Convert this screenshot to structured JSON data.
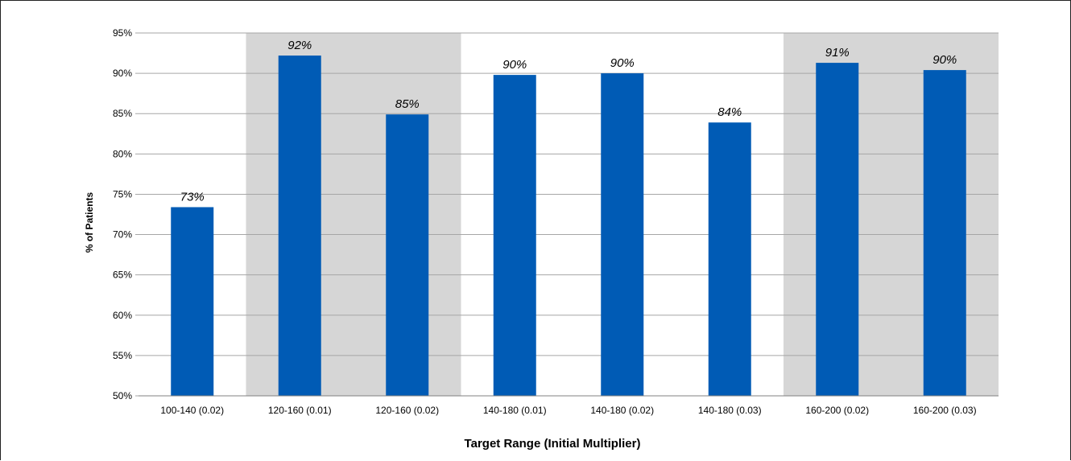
{
  "chart_data": {
    "type": "bar",
    "title": "",
    "xlabel": "Target Range (Initial Multiplier)",
    "ylabel": "% of Patients",
    "ylim": [
      50,
      95
    ],
    "ytick_step": 5,
    "ytick_labels": [
      "50%",
      "55%",
      "60%",
      "65%",
      "70%",
      "75%",
      "80%",
      "85%",
      "90%",
      "95%"
    ],
    "grid": true,
    "categories": [
      "100-140 (0.02)",
      "120-160 (0.01)",
      "120-160 (0.02)",
      "140-180 (0.01)",
      "140-180 (0.02)",
      "140-180 (0.03)",
      "160-200 (0.02)",
      "160-200 (0.03)"
    ],
    "values": [
      73.4,
      92.2,
      84.9,
      89.8,
      90.0,
      83.9,
      91.3,
      90.4
    ],
    "data_labels": [
      "73%",
      "92%",
      "85%",
      "90%",
      "90%",
      "84%",
      "91%",
      "90%"
    ],
    "highlight_bands": [
      {
        "from_category": 1,
        "to_category": 2
      },
      {
        "from_category": 6,
        "to_category": 7
      }
    ],
    "colors": {
      "bar": "#005bb5",
      "band": "#d6d6d6",
      "grid": "#a6a6a6"
    }
  }
}
